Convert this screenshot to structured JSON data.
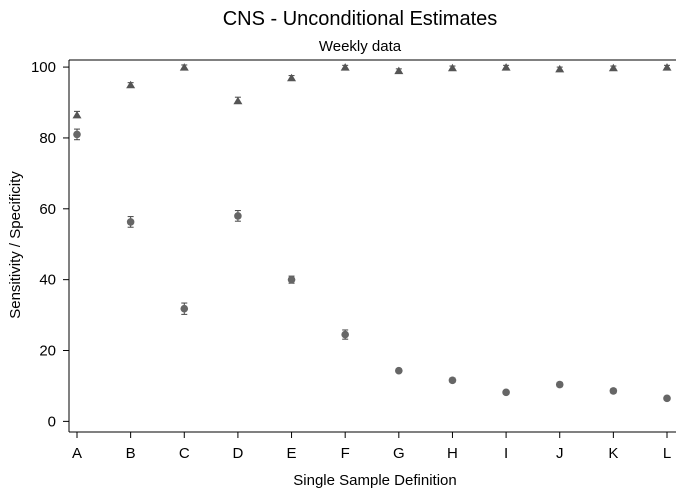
{
  "chart_data": {
    "type": "scatter",
    "title": "CNS - Unconditional Estimates",
    "subtitle": "Weekly data",
    "xlabel": "Single Sample Definition",
    "ylabel": "Sensitivity / Specificity",
    "categories": [
      "A",
      "B",
      "C",
      "D",
      "E",
      "F",
      "G",
      "H",
      "I",
      "J",
      "K",
      "L"
    ],
    "ylim": [
      -3,
      102
    ],
    "yticks": [
      0,
      20,
      40,
      60,
      80,
      100
    ],
    "grid": false,
    "series": [
      {
        "marker": "triangle",
        "color": "#555555",
        "values": [
          86.5,
          95.0,
          100.0,
          90.5,
          97.0,
          100.0,
          99.0,
          99.8,
          100.0,
          99.5,
          99.8,
          100.0
        ],
        "lower": [
          86.0,
          94.5,
          99.5,
          89.8,
          96.5,
          99.6,
          98.6,
          99.4,
          99.6,
          99.1,
          99.4,
          99.6
        ],
        "upper": [
          87.5,
          95.6,
          100.6,
          91.5,
          97.6,
          100.5,
          99.5,
          100.3,
          100.5,
          100.0,
          100.3,
          100.5
        ]
      },
      {
        "marker": "circle",
        "color": "#666666",
        "values": [
          81.0,
          56.3,
          31.8,
          58.0,
          40.0,
          24.5,
          14.3,
          11.6,
          8.2,
          10.4,
          8.6,
          6.5
        ],
        "lower": [
          79.5,
          54.8,
          30.2,
          56.5,
          39.0,
          23.2,
          13.8,
          11.0,
          7.7,
          9.8,
          8.0,
          6.0
        ],
        "upper": [
          82.5,
          57.8,
          33.4,
          59.5,
          41.0,
          25.8,
          14.8,
          12.2,
          8.7,
          11.0,
          9.2,
          7.0
        ]
      }
    ]
  }
}
